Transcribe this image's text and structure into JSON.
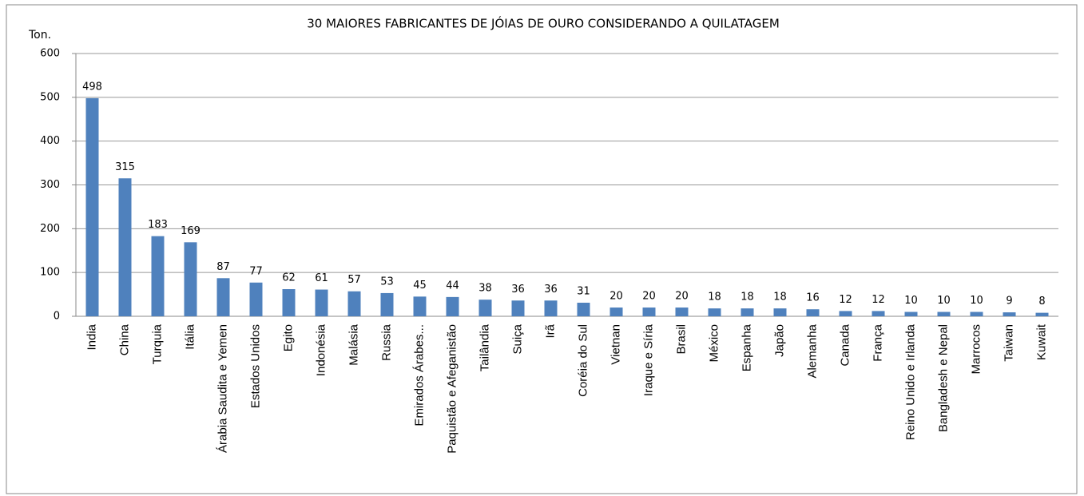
{
  "chart_data": {
    "type": "bar",
    "title": "30 MAIORES FABRICANTES DE JÓIAS DE OURO CONSIDERANDO A QUILATAGEM",
    "y_label": "Ton.",
    "categories": [
      "India",
      "China",
      "Turquia",
      "Itália",
      "Árabia Saudita e Yemen",
      "Estados Unidos",
      "Egito",
      "Indonésia",
      "Malásia",
      "Russia",
      "Emirados Árabes...",
      "Paquistão e Afeganistão",
      "Tailândia",
      "Suiça",
      "Irã",
      "Coréia do Sul",
      "Vietnan",
      "Iraque e Síria",
      "Brasil",
      "México",
      "Espanha",
      "Japão",
      "Alemanha",
      "Canada",
      "França",
      "Reino Unido e Irlanda",
      "Bangladesh e Nepal",
      "Marrocos",
      "Taiwan",
      "Kuwait"
    ],
    "values": [
      498,
      315,
      183,
      169,
      87,
      77,
      62,
      61,
      57,
      53,
      45,
      44,
      38,
      36,
      36,
      31,
      20,
      20,
      20,
      18,
      18,
      18,
      16,
      12,
      12,
      10,
      10,
      10,
      9,
      8
    ],
    "color": "#4f81bd",
    "ylim": [
      0,
      600
    ],
    "yticks": [
      0,
      100,
      200,
      300,
      400,
      500,
      600
    ],
    "grid": true
  }
}
